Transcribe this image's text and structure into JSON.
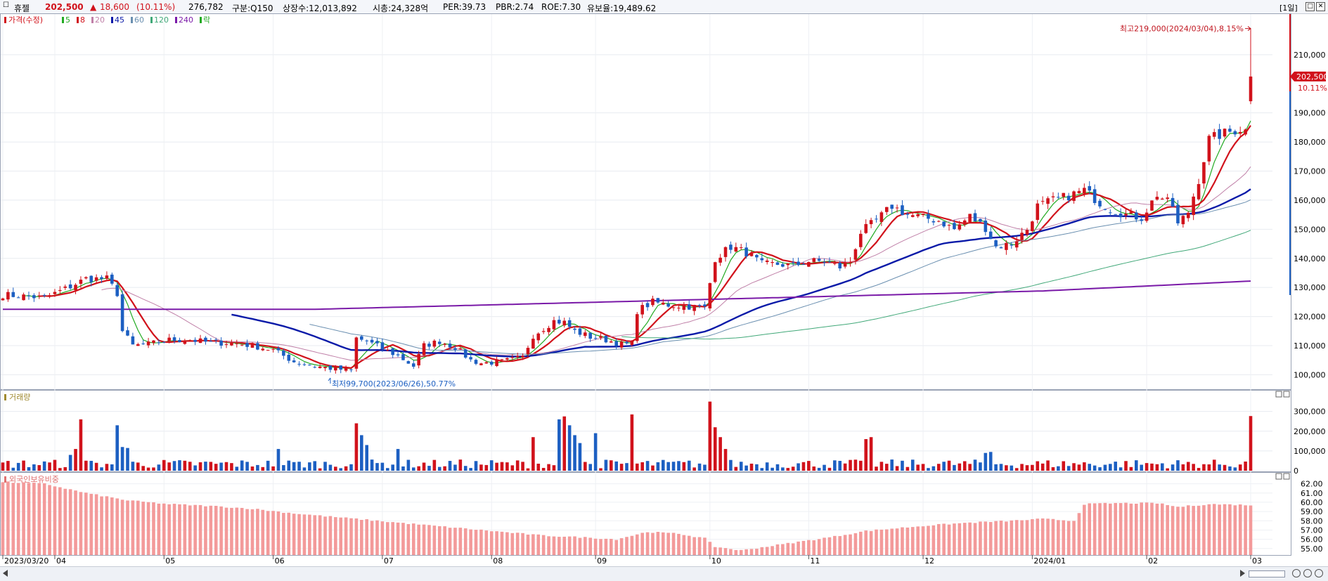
{
  "header": {
    "stock_name": "휴젤",
    "price": "202,500",
    "change_arrow": "▲",
    "change": "18,600",
    "change_pct": "(10.11%)",
    "volume": "276,782",
    "category": "구분:Q150",
    "shares": "상장수:12,013,892",
    "market_cap": "시총:24,328억",
    "per": "PER:39.73",
    "pbr": "PBR:2.74",
    "roe": "ROE:7.30",
    "float": "유보율:19,489.62",
    "period": "[1일]",
    "colors": {
      "up": "#d1121b",
      "down": "#1c5fc2"
    }
  },
  "legend": {
    "price": "가격(수정)",
    "ma": [
      {
        "label": "5",
        "color": "#22aa22"
      },
      {
        "label": "8",
        "color": "#d1121b"
      },
      {
        "label": "20",
        "color": "#c080a8"
      },
      {
        "label": "45",
        "color": "#0a1aa8"
      },
      {
        "label": "60",
        "color": "#6a8fb0"
      },
      {
        "label": "120",
        "color": "#40a878"
      },
      {
        "label": "240",
        "color": "#7a1aa8"
      }
    ],
    "extra": "락",
    "volume": "거래량",
    "foreign": "외국인보유비중"
  },
  "annotations": {
    "high": "최고219,000(2024/03/04),8.15%",
    "low": "최저99,700(2023/06/26),50.77%",
    "current_price": "202,500",
    "current_pct": "10.11%"
  },
  "chart_data": [
    {
      "type": "candlestick",
      "y_ticks": [
        "100,000",
        "110,000",
        "120,000",
        "130,000",
        "140,000",
        "150,000",
        "160,000",
        "170,000",
        "180,000",
        "190,000",
        "210,000"
      ],
      "y_tick_values": [
        100000,
        110000,
        120000,
        130000,
        140000,
        150000,
        160000,
        170000,
        180000,
        190000,
        210000
      ],
      "ylim": [
        96000,
        223000
      ],
      "x_ticks": [
        "2023/03/20",
        "04",
        "05",
        "06",
        "07",
        "08",
        "09",
        "10",
        "11",
        "12",
        "2024/01",
        "02",
        "03"
      ],
      "x_tick_index": [
        0,
        10,
        31,
        52,
        73,
        94,
        114,
        136,
        155,
        177,
        198,
        220,
        240
      ],
      "n": 241,
      "anchors": [
        [
          0,
          127500
        ],
        [
          4,
          127000
        ],
        [
          8,
          126500
        ],
        [
          12,
          129500
        ],
        [
          16,
          133000
        ],
        [
          20,
          133000
        ],
        [
          22,
          128000
        ],
        [
          23,
          115000
        ],
        [
          25,
          110000
        ],
        [
          28,
          110500
        ],
        [
          32,
          112000
        ],
        [
          36,
          112000
        ],
        [
          40,
          111000
        ],
        [
          44,
          111000
        ],
        [
          48,
          110000
        ],
        [
          52,
          108500
        ],
        [
          56,
          104500
        ],
        [
          60,
          103000
        ],
        [
          64,
          102000
        ],
        [
          67,
          101500
        ],
        [
          68,
          112500
        ],
        [
          70,
          111500
        ],
        [
          73,
          109000
        ],
        [
          76,
          106500
        ],
        [
          79,
          103000
        ],
        [
          81,
          110000
        ],
        [
          84,
          111500
        ],
        [
          87,
          109500
        ],
        [
          90,
          105000
        ],
        [
          92,
          104000
        ],
        [
          96,
          104500
        ],
        [
          100,
          106000
        ],
        [
          102,
          113500
        ],
        [
          106,
          118500
        ],
        [
          108,
          118000
        ],
        [
          110,
          115000
        ],
        [
          113,
          113000
        ],
        [
          116,
          112000
        ],
        [
          119,
          110500
        ],
        [
          121,
          110500
        ],
        [
          122,
          122000
        ],
        [
          125,
          125000
        ],
        [
          128,
          124000
        ],
        [
          132,
          123500
        ],
        [
          135,
          123000
        ],
        [
          137,
          140000
        ],
        [
          140,
          144000
        ],
        [
          143,
          142000
        ],
        [
          146,
          138000
        ],
        [
          149,
          138000
        ],
        [
          152,
          137500
        ],
        [
          155,
          139000
        ],
        [
          158,
          139000
        ],
        [
          161,
          137000
        ],
        [
          163,
          139000
        ],
        [
          165,
          149000
        ],
        [
          168,
          153000
        ],
        [
          171,
          158000
        ],
        [
          174,
          155000
        ],
        [
          177,
          154000
        ],
        [
          180,
          153000
        ],
        [
          183,
          150000
        ],
        [
          186,
          154500
        ],
        [
          189,
          150500
        ],
        [
          191,
          144000
        ],
        [
          194,
          145000
        ],
        [
          197,
          150000
        ],
        [
          199,
          158000
        ],
        [
          202,
          160000
        ],
        [
          205,
          161500
        ],
        [
          208,
          163500
        ],
        [
          211,
          159000
        ],
        [
          213,
          157000
        ],
        [
          216,
          155000
        ],
        [
          219,
          154000
        ],
        [
          222,
          162000
        ],
        [
          225,
          158000
        ],
        [
          226,
          151500
        ],
        [
          228,
          156000
        ],
        [
          230,
          167000
        ],
        [
          232,
          181000
        ],
        [
          235,
          183000
        ],
        [
          238,
          184500
        ],
        [
          239,
          183900
        ],
        [
          240,
          202500
        ]
      ],
      "highlight": {
        "index": 240,
        "open": 194000,
        "close": 202500,
        "high": 219000,
        "low": 193000
      }
    },
    {
      "type": "bar",
      "name": "거래량",
      "y_ticks": [
        "0",
        "100,000",
        "200,000",
        "300,000"
      ],
      "y_tick_values": [
        0,
        100000,
        200000,
        300000
      ],
      "ylim": [
        0,
        370000
      ],
      "spikes": [
        [
          13,
          80000
        ],
        [
          14,
          110000
        ],
        [
          15,
          260000
        ],
        [
          22,
          230000
        ],
        [
          23,
          120000
        ],
        [
          24,
          115000
        ],
        [
          53,
          110000
        ],
        [
          68,
          240000
        ],
        [
          69,
          180000
        ],
        [
          70,
          130000
        ],
        [
          76,
          110000
        ],
        [
          102,
          170000
        ],
        [
          107,
          260000
        ],
        [
          108,
          275000
        ],
        [
          109,
          230000
        ],
        [
          110,
          180000
        ],
        [
          111,
          140000
        ],
        [
          114,
          190000
        ],
        [
          121,
          285000
        ],
        [
          136,
          350000
        ],
        [
          137,
          220000
        ],
        [
          138,
          170000
        ],
        [
          139,
          110000
        ],
        [
          166,
          160000
        ],
        [
          167,
          170000
        ],
        [
          189,
          90000
        ],
        [
          190,
          95000
        ],
        [
          240,
          276782
        ]
      ]
    },
    {
      "type": "bar",
      "name": "외국인보유비중",
      "y_ticks": [
        "55.00",
        "56.00",
        "57.00",
        "58.00",
        "59.00",
        "60.00",
        "61.00",
        "62.00"
      ],
      "y_tick_values": [
        55,
        56,
        57,
        58,
        59,
        60,
        61,
        62
      ],
      "ylim": [
        54.3,
        62.5
      ],
      "anchors": [
        [
          0,
          62.2
        ],
        [
          8,
          62.0
        ],
        [
          16,
          61.0
        ],
        [
          24,
          60.2
        ],
        [
          32,
          59.8
        ],
        [
          40,
          59.6
        ],
        [
          48,
          59.3
        ],
        [
          56,
          58.8
        ],
        [
          64,
          58.4
        ],
        [
          72,
          58.0
        ],
        [
          80,
          57.6
        ],
        [
          88,
          57.2
        ],
        [
          96,
          56.8
        ],
        [
          104,
          56.4
        ],
        [
          112,
          56.2
        ],
        [
          118,
          56.0
        ],
        [
          124,
          56.8
        ],
        [
          130,
          56.6
        ],
        [
          135,
          56.1
        ],
        [
          137,
          55.2
        ],
        [
          142,
          54.8
        ],
        [
          148,
          55.3
        ],
        [
          154,
          55.8
        ],
        [
          160,
          56.3
        ],
        [
          166,
          56.9
        ],
        [
          172,
          57.2
        ],
        [
          178,
          57.5
        ],
        [
          186,
          57.8
        ],
        [
          194,
          58.0
        ],
        [
          200,
          58.2
        ],
        [
          206,
          58.0
        ],
        [
          208,
          59.8
        ],
        [
          214,
          59.9
        ],
        [
          222,
          59.9
        ],
        [
          226,
          59.5
        ],
        [
          232,
          59.8
        ],
        [
          240,
          59.7
        ]
      ]
    }
  ]
}
